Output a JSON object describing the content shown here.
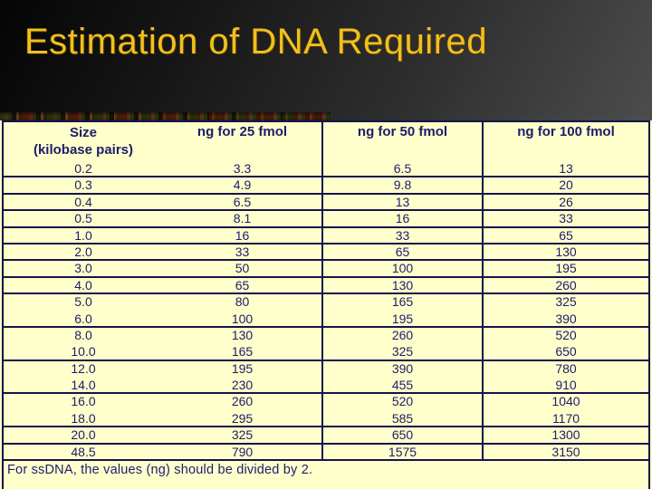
{
  "slide": {
    "title": "Estimation of DNA Required"
  },
  "table": {
    "header": {
      "col1_line1": "Size",
      "col1_line2": "(kilobase pairs)",
      "col2": "ng for 25 fmol",
      "col3": "ng for 50 fmol",
      "col4": "ng for 100 fmol"
    },
    "rows": [
      {
        "size": "0.2",
        "ng25": "3.3",
        "ng50": "6.5",
        "ng100": "13",
        "divider": true
      },
      {
        "size": "0.3",
        "ng25": "4.9",
        "ng50": "9.8",
        "ng100": "20",
        "divider": true
      },
      {
        "size": "0.4",
        "ng25": "6.5",
        "ng50": "13",
        "ng100": "26",
        "divider": true
      },
      {
        "size": "0.5",
        "ng25": "8.1",
        "ng50": "16",
        "ng100": "33",
        "divider": true
      },
      {
        "size": "1.0",
        "ng25": "16",
        "ng50": "33",
        "ng100": "65",
        "divider": true
      },
      {
        "size": "2.0",
        "ng25": "33",
        "ng50": "65",
        "ng100": "130",
        "divider": true
      },
      {
        "size": "3.0",
        "ng25": "50",
        "ng50": "100",
        "ng100": "195",
        "divider": true
      },
      {
        "size": "4.0",
        "ng25": "65",
        "ng50": "130",
        "ng100": "260",
        "divider": true
      },
      {
        "size": "5.0",
        "ng25": "80",
        "ng50": "165",
        "ng100": "325",
        "divider": false
      },
      {
        "size": "6.0",
        "ng25": "100",
        "ng50": "195",
        "ng100": "390",
        "divider": true
      },
      {
        "size": "8.0",
        "ng25": "130",
        "ng50": "260",
        "ng100": "520",
        "divider": false
      },
      {
        "size": "10.0",
        "ng25": "165",
        "ng50": "325",
        "ng100": "650",
        "divider": true
      },
      {
        "size": "12.0",
        "ng25": "195",
        "ng50": "390",
        "ng100": "780",
        "divider": false
      },
      {
        "size": "14.0",
        "ng25": "230",
        "ng50": "455",
        "ng100": "910",
        "divider": true
      },
      {
        "size": "16.0",
        "ng25": "260",
        "ng50": "520",
        "ng100": "1040",
        "divider": false
      },
      {
        "size": "18.0",
        "ng25": "295",
        "ng50": "585",
        "ng100": "1170",
        "divider": true
      },
      {
        "size": "20.0",
        "ng25": "325",
        "ng50": "650",
        "ng100": "1300",
        "divider": true
      },
      {
        "size": "48.5",
        "ng25": "790",
        "ng50": "1575",
        "ng100": "3150",
        "divider": true
      }
    ],
    "footnote": "For ssDNA, the values (ng) should be divided by 2."
  },
  "colors": {
    "title_gold": "#f1c01e",
    "table_background": "#ffffcc",
    "table_text": "#1c1c6b",
    "table_border": "#14144a"
  }
}
